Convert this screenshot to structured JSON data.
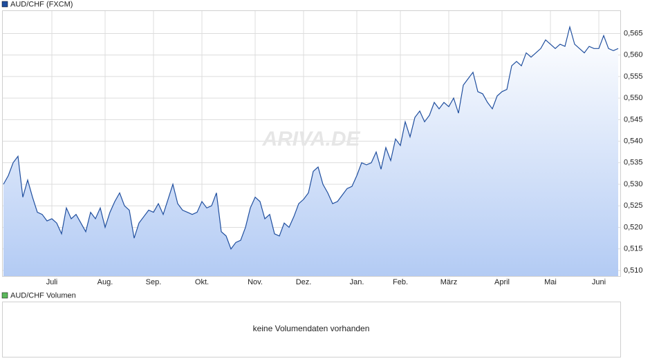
{
  "chart_data": {
    "type": "line",
    "watermark": "ARIVA.DE",
    "categories": [
      null,
      null,
      null,
      null,
      null,
      null,
      null,
      null,
      null,
      null,
      "Juli",
      null,
      null,
      null,
      null,
      null,
      null,
      null,
      null,
      null,
      null,
      "Aug.",
      null,
      null,
      null,
      null,
      null,
      null,
      null,
      null,
      null,
      "Sep.",
      null,
      null,
      null,
      null,
      null,
      null,
      null,
      null,
      null,
      "Okt.",
      null,
      null,
      null,
      null,
      null,
      null,
      null,
      null,
      null,
      null,
      "Nov.",
      null,
      null,
      null,
      null,
      null,
      null,
      null,
      null,
      null,
      "Dez.",
      null,
      null,
      null,
      null,
      null,
      null,
      null,
      null,
      null,
      null,
      "Jan.",
      null,
      null,
      null,
      null,
      null,
      null,
      null,
      null,
      "Feb.",
      null,
      null,
      null,
      null,
      null,
      null,
      null,
      null,
      null,
      "März",
      null,
      null,
      null,
      null,
      null,
      null,
      null,
      null,
      null,
      null,
      "April",
      null,
      null,
      null,
      null,
      null,
      null,
      null,
      null,
      null,
      "Mai",
      null,
      null,
      null,
      null,
      null,
      null,
      null,
      null,
      null,
      "Juni",
      null,
      null,
      null,
      null
    ],
    "series": [
      {
        "name": "AUD/CHF (FXCM)",
        "color": "#1f4e9e",
        "values": [
          0.53,
          0.532,
          0.535,
          0.5365,
          0.527,
          0.531,
          0.527,
          0.5235,
          0.523,
          0.5215,
          0.522,
          0.521,
          0.5185,
          0.5245,
          0.522,
          0.523,
          0.521,
          0.519,
          0.5235,
          0.522,
          0.5245,
          0.52,
          0.5235,
          0.526,
          0.528,
          0.525,
          0.524,
          0.5175,
          0.521,
          0.5225,
          0.524,
          0.5235,
          0.5255,
          0.523,
          0.5265,
          0.53,
          0.5255,
          0.524,
          0.5235,
          0.523,
          0.5235,
          0.526,
          0.5245,
          0.525,
          0.528,
          0.519,
          0.518,
          0.515,
          0.5165,
          0.517,
          0.52,
          0.5245,
          0.527,
          0.526,
          0.522,
          0.523,
          0.5185,
          0.518,
          0.521,
          0.52,
          0.5225,
          0.5255,
          0.5265,
          0.528,
          0.533,
          0.534,
          0.53,
          0.528,
          0.5255,
          0.526,
          0.5275,
          0.529,
          0.5295,
          0.532,
          0.535,
          0.5345,
          0.535,
          0.5375,
          0.5335,
          0.5385,
          0.5355,
          0.5405,
          0.539,
          0.5445,
          0.541,
          0.5455,
          0.547,
          0.5445,
          0.546,
          0.549,
          0.5475,
          0.549,
          0.548,
          0.55,
          0.5465,
          0.553,
          0.5545,
          0.556,
          0.5515,
          0.551,
          0.549,
          0.5475,
          0.5505,
          0.5515,
          0.552,
          0.5575,
          0.5585,
          0.5575,
          0.5605,
          0.5595,
          0.5605,
          0.5615,
          0.5635,
          0.5625,
          0.5615,
          0.5625,
          0.562,
          0.5665,
          0.5625,
          0.5615,
          0.5605,
          0.562,
          0.5615,
          0.5615,
          0.5645,
          0.5615,
          0.561,
          0.5615
        ]
      }
    ],
    "ylim": [
      0.5087,
      0.5702
    ],
    "yticks": [
      {
        "value": 0.51,
        "label": "0,510"
      },
      {
        "value": 0.515,
        "label": "0,515"
      },
      {
        "value": 0.52,
        "label": "0,520"
      },
      {
        "value": 0.525,
        "label": "0,525"
      },
      {
        "value": 0.53,
        "label": "0,530"
      },
      {
        "value": 0.535,
        "label": "0,535"
      },
      {
        "value": 0.54,
        "label": "0,540"
      },
      {
        "value": 0.545,
        "label": "0,545"
      },
      {
        "value": 0.55,
        "label": "0,550"
      },
      {
        "value": 0.555,
        "label": "0,555"
      },
      {
        "value": 0.56,
        "label": "0,560"
      },
      {
        "value": 0.565,
        "label": "0,565"
      }
    ],
    "grid": true
  },
  "volume_panel": {
    "legend": "AUD/CHF Volumen",
    "color": "#5cb85c",
    "message": "keine Volumendaten vorhanden"
  }
}
